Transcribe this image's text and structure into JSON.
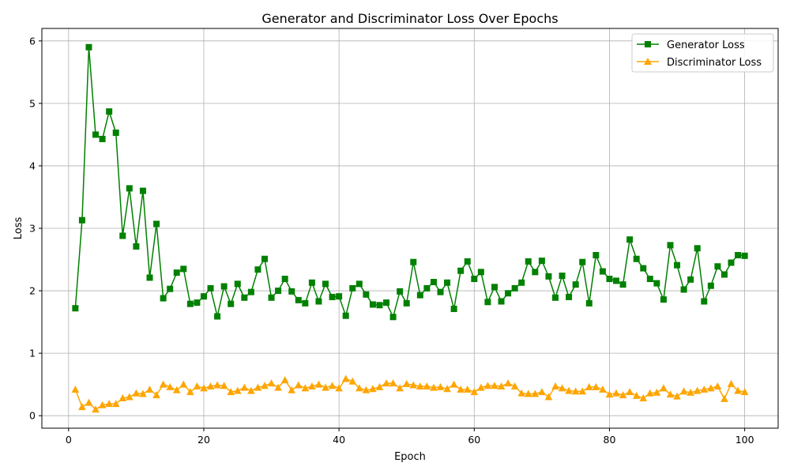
{
  "chart_data": {
    "type": "line",
    "title": "Generator and Discriminator Loss Over Epochs",
    "xlabel": "Epoch",
    "ylabel": "Loss",
    "xlim": [
      -3.95,
      104.95
    ],
    "ylim": [
      -0.2,
      6.2
    ],
    "xticks": [
      0,
      20,
      40,
      60,
      80,
      100
    ],
    "yticks": [
      0,
      1,
      2,
      3,
      4,
      5,
      6
    ],
    "grid": true,
    "legend_position": "top-right",
    "x": [
      1,
      2,
      3,
      4,
      5,
      6,
      7,
      8,
      9,
      10,
      11,
      12,
      13,
      14,
      15,
      16,
      17,
      18,
      19,
      20,
      21,
      22,
      23,
      24,
      25,
      26,
      27,
      28,
      29,
      30,
      31,
      32,
      33,
      34,
      35,
      36,
      37,
      38,
      39,
      40,
      41,
      42,
      43,
      44,
      45,
      46,
      47,
      48,
      49,
      50,
      51,
      52,
      53,
      54,
      55,
      56,
      57,
      58,
      59,
      60,
      61,
      62,
      63,
      64,
      65,
      66,
      67,
      68,
      69,
      70,
      71,
      72,
      73,
      74,
      75,
      76,
      77,
      78,
      79,
      80,
      81,
      82,
      83,
      84,
      85,
      86,
      87,
      88,
      89,
      90,
      91,
      92,
      93,
      94,
      95,
      96,
      97,
      98,
      99,
      100
    ],
    "series": [
      {
        "name": "Generator Loss",
        "color": "#008000",
        "marker": "square",
        "values": [
          1.72,
          3.13,
          5.9,
          4.5,
          4.43,
          4.87,
          4.53,
          2.88,
          3.64,
          2.71,
          3.6,
          2.21,
          3.07,
          1.88,
          2.03,
          2.29,
          2.35,
          1.79,
          1.81,
          1.91,
          2.04,
          1.59,
          2.07,
          1.79,
          2.11,
          1.89,
          1.98,
          2.34,
          2.51,
          1.89,
          2.0,
          2.19,
          1.99,
          1.85,
          1.8,
          2.13,
          1.83,
          2.11,
          1.9,
          1.91,
          1.6,
          2.04,
          2.11,
          1.94,
          1.78,
          1.77,
          1.81,
          1.58,
          1.99,
          1.8,
          2.46,
          1.93,
          2.04,
          2.14,
          1.98,
          2.13,
          1.71,
          2.32,
          2.47,
          2.19,
          2.3,
          1.82,
          2.06,
          1.83,
          1.96,
          2.04,
          2.13,
          2.47,
          2.3,
          2.48,
          2.23,
          1.89,
          2.24,
          1.9,
          2.1,
          2.46,
          1.8,
          2.57,
          2.31,
          2.19,
          2.16,
          2.1,
          2.82,
          2.51,
          2.36,
          2.19,
          2.12,
          1.86,
          2.73,
          2.41,
          2.02,
          2.18,
          2.68,
          1.83,
          2.08,
          2.39,
          2.26,
          2.45,
          2.57,
          2.56
        ]
      },
      {
        "name": "Discriminator Loss",
        "color": "#FFA500",
        "marker": "triangle",
        "values": [
          0.42,
          0.14,
          0.21,
          0.1,
          0.17,
          0.19,
          0.19,
          0.28,
          0.3,
          0.36,
          0.35,
          0.42,
          0.33,
          0.5,
          0.46,
          0.41,
          0.5,
          0.38,
          0.47,
          0.44,
          0.47,
          0.49,
          0.48,
          0.38,
          0.4,
          0.45,
          0.4,
          0.45,
          0.48,
          0.52,
          0.45,
          0.57,
          0.41,
          0.49,
          0.44,
          0.47,
          0.5,
          0.45,
          0.48,
          0.44,
          0.59,
          0.55,
          0.44,
          0.41,
          0.43,
          0.46,
          0.52,
          0.52,
          0.44,
          0.51,
          0.49,
          0.47,
          0.47,
          0.45,
          0.46,
          0.43,
          0.5,
          0.42,
          0.42,
          0.38,
          0.45,
          0.48,
          0.48,
          0.47,
          0.52,
          0.47,
          0.36,
          0.35,
          0.35,
          0.38,
          0.3,
          0.47,
          0.44,
          0.4,
          0.39,
          0.39,
          0.46,
          0.46,
          0.42,
          0.34,
          0.36,
          0.33,
          0.38,
          0.32,
          0.28,
          0.36,
          0.37,
          0.44,
          0.34,
          0.31,
          0.39,
          0.37,
          0.4,
          0.42,
          0.44,
          0.47,
          0.27,
          0.51,
          0.4,
          0.38
        ]
      }
    ]
  }
}
